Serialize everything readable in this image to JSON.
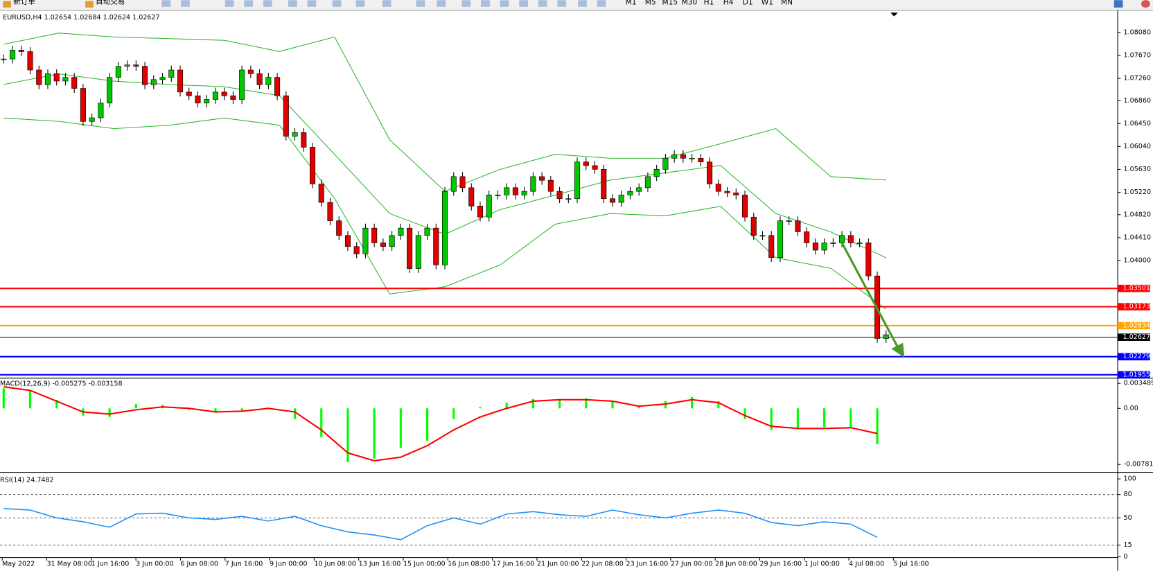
{
  "toolbar": {
    "buttons": [
      "新订单",
      "自动交易"
    ],
    "timeframes": [
      "M1",
      "M5",
      "M15",
      "M30",
      "H1",
      "H4",
      "D1",
      "W1",
      "MN"
    ]
  },
  "chart_data": [
    {
      "type": "candlestick",
      "title": "EURUSD,H4  1.02654 1.02684 1.02624 1.02627",
      "close": [
        1.07606,
        1.07764,
        1.07738,
        1.07409,
        1.07146,
        1.07343,
        1.07211,
        1.07277,
        1.0708,
        1.06488,
        1.06553,
        1.06817,
        1.07277,
        1.07475,
        1.07501,
        1.07475,
        1.07146,
        1.07238,
        1.07277,
        1.07409,
        1.07014,
        1.06948,
        1.06817,
        1.06882,
        1.07014,
        1.06948,
        1.06882,
        1.07409,
        1.07343,
        1.07146,
        1.07277,
        1.06948,
        1.06224,
        1.0629,
        1.06027,
        1.05369,
        1.0504,
        1.04711,
        1.04448,
        1.0425,
        1.04119,
        1.0458,
        1.04316,
        1.0425,
        1.04448,
        1.0458,
        1.03856,
        1.04448,
        1.0458,
        1.03921,
        1.05237,
        1.05501,
        1.05303,
        1.04974,
        1.04777,
        1.05172,
        1.05172,
        1.05303,
        1.05172,
        1.05237,
        1.05501,
        1.05435,
        1.05237,
        1.05106,
        1.05106,
        1.05764,
        1.05698,
        1.05632,
        1.05106,
        1.0504,
        1.05172,
        1.05237,
        1.05303,
        1.05501,
        1.05632,
        1.0583,
        1.05895,
        1.0583,
        1.0583,
        1.05764,
        1.05369,
        1.05237,
        1.05211,
        1.05172,
        1.04777,
        1.04448,
        1.04448,
        1.04053,
        1.04711,
        1.04711,
        1.04514,
        1.04316,
        1.04185,
        1.04316,
        1.04316,
        1.04448,
        1.04316,
        1.04316,
        1.03724,
        1.02605,
        1.02671
      ],
      "bands": {
        "color": "#2db82d",
        "upper": [
          1.0787,
          1.0807,
          1.08,
          1.0797,
          1.0794,
          1.0774,
          1.08,
          1.0616,
          1.0524,
          1.0563,
          1.059,
          1.0583,
          1.0583,
          1.0609,
          1.0636,
          1.055,
          1.0544
        ],
        "middle": [
          1.0715,
          1.0734,
          1.0721,
          1.0715,
          1.0711,
          1.0695,
          1.059,
          1.0484,
          1.0447,
          1.0491,
          1.0517,
          1.0544,
          1.0557,
          1.057,
          1.0484,
          1.0451,
          1.0405
        ],
        "lower": [
          1.0655,
          1.0649,
          1.0636,
          1.0642,
          1.0655,
          1.0642,
          1.0511,
          1.034,
          1.0353,
          1.0392,
          1.0465,
          1.0484,
          1.048,
          1.0497,
          1.0405,
          1.0386,
          1.0313
        ]
      },
      "up_color": "#00c800",
      "down_color": "#e00000",
      "levels": [
        {
          "value": 1.03501,
          "label": "1.03501",
          "color": "#ff0000"
        },
        {
          "value": 1.03173,
          "label": "1.03173",
          "color": "#ff0000"
        },
        {
          "value": 1.02834,
          "label": "1.02834",
          "color": "#ffa500"
        },
        {
          "value": 1.02627,
          "label": "1.02627",
          "color": "#000000"
        },
        {
          "value": 1.02279,
          "label": "1.02279",
          "color": "#0000ff"
        },
        {
          "value": 1.01955,
          "label": "1.01955",
          "color": "#0000ff"
        }
      ],
      "ylim": [
        1.01921,
        1.08448
      ],
      "yticks": [
        {
          "value": 1.0808,
          "label": "1.08080"
        },
        {
          "value": 1.0767,
          "label": "1.07670"
        },
        {
          "value": 1.0726,
          "label": "1.07260"
        },
        {
          "value": 1.0686,
          "label": "1.06860"
        },
        {
          "value": 1.0645,
          "label": "1.06450"
        },
        {
          "value": 1.0604,
          "label": "1.06040"
        },
        {
          "value": 1.0563,
          "label": "1.05630"
        },
        {
          "value": 1.0522,
          "label": "1.05220"
        },
        {
          "value": 1.0482,
          "label": "1.04820"
        },
        {
          "value": 1.0441,
          "label": "1.04410"
        },
        {
          "value": 1.04,
          "label": "1.04000"
        }
      ],
      "time_labels": [
        "May 2022",
        "31 May 08:00",
        "1 Jun 16:00",
        "3 Jun 00:00",
        "6 Jun 08:00",
        "7 Jun 16:00",
        "9 Jun 00:00",
        "10 Jun 08:00",
        "13 Jun 16:00",
        "15 Jun 00:00",
        "16 Jun 08:00",
        "17 Jun 16:00",
        "21 Jun 00:00",
        "22 Jun 08:00",
        "23 Jun 16:00",
        "27 Jun 00:00",
        "28 Jun 08:00",
        "29 Jun 16:00",
        "1 Jul 00:00",
        "4 Jul 08:00",
        "5 Jul 16:00"
      ]
    },
    {
      "type": "macd",
      "title": "MACD(12,26,9) -0.005275 -0.003158",
      "histogram": [
        0.0028,
        0.0025,
        0.0012,
        -0.001,
        -0.0012,
        0.0006,
        0.0005,
        -0.0002,
        -0.0006,
        -0.0004,
        0.0001,
        -0.0015,
        -0.004,
        -0.0075,
        -0.007,
        -0.0055,
        -0.0045,
        -0.0015,
        0.0002,
        0.0008,
        0.0013,
        0.0012,
        0.0014,
        0.001,
        0.0002,
        0.001,
        0.0016,
        0.001,
        -0.0015,
        -0.003,
        -0.0028,
        -0.0026,
        -0.0026,
        -0.005
      ],
      "signal": [
        0.003,
        0.0025,
        0.001,
        -0.0005,
        -0.0008,
        -0.0002,
        0.0002,
        0,
        -0.0005,
        -0.0004,
        0,
        -0.0005,
        -0.003,
        -0.0062,
        -0.0073,
        -0.0068,
        -0.0052,
        -0.003,
        -0.0012,
        0,
        0.001,
        0.0012,
        0.0012,
        0.001,
        0.0003,
        0.0006,
        0.0012,
        0.0008,
        -0.001,
        -0.0025,
        -0.0028,
        -0.0028,
        -0.0027,
        -0.0035
      ],
      "histogram_color": "#00ff00",
      "signal_color": "#ff0000",
      "ylim": [
        -0.0087,
        0.0039
      ],
      "yticks": [
        0.003489,
        {
          "value": 0,
          "label": "0.00"
        },
        -0.007813
      ]
    },
    {
      "type": "rsi",
      "title": "RSI(14) 24.7482",
      "values": [
        62,
        60,
        50,
        45,
        38,
        55,
        56,
        50,
        48,
        52,
        46,
        52,
        40,
        32,
        28,
        22,
        40,
        50,
        42,
        55,
        58,
        54,
        52,
        60,
        54,
        50,
        56,
        60,
        56,
        44,
        40,
        45,
        42,
        25
      ],
      "color": "#1e90ff",
      "levels": [
        15,
        50,
        80
      ],
      "ylim": [
        0,
        100
      ],
      "yticks": [
        0,
        15,
        50,
        80,
        100
      ]
    }
  ]
}
